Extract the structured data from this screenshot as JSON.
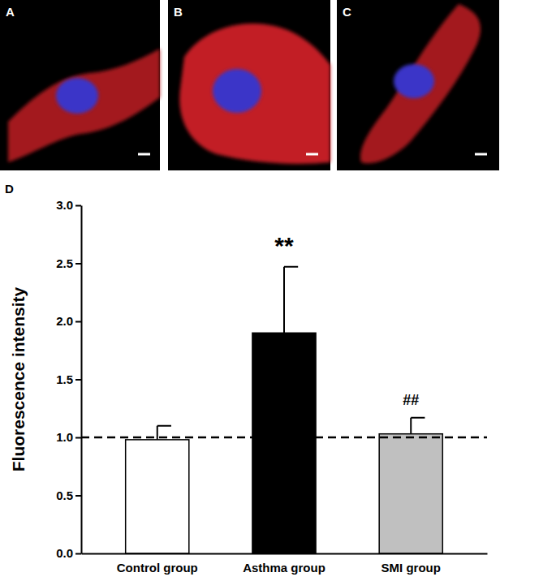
{
  "panels": {
    "labels": [
      "A",
      "B",
      "C",
      "D"
    ]
  },
  "chart_data": {
    "type": "bar",
    "y_label": "Fluorescence intensity",
    "categories": [
      "Control group",
      "Asthma group",
      "SMI group"
    ],
    "values": [
      0.98,
      1.9,
      1.03
    ],
    "errors": [
      0.12,
      0.57,
      0.14
    ],
    "annotations": [
      null,
      "**",
      "##"
    ],
    "colors": [
      "#ffffff",
      "#000000",
      "#c0c0c0"
    ],
    "reference_line": 1.0,
    "ylim": [
      0,
      3
    ],
    "yticks": [
      {
        "value": 0,
        "label": "0.0"
      },
      0.5,
      {
        "value": 1,
        "label": "1.0"
      },
      1.5,
      {
        "value": 2,
        "label": "2.0"
      },
      2.5,
      {
        "value": 3,
        "label": "3.0"
      }
    ],
    "grid": false
  }
}
